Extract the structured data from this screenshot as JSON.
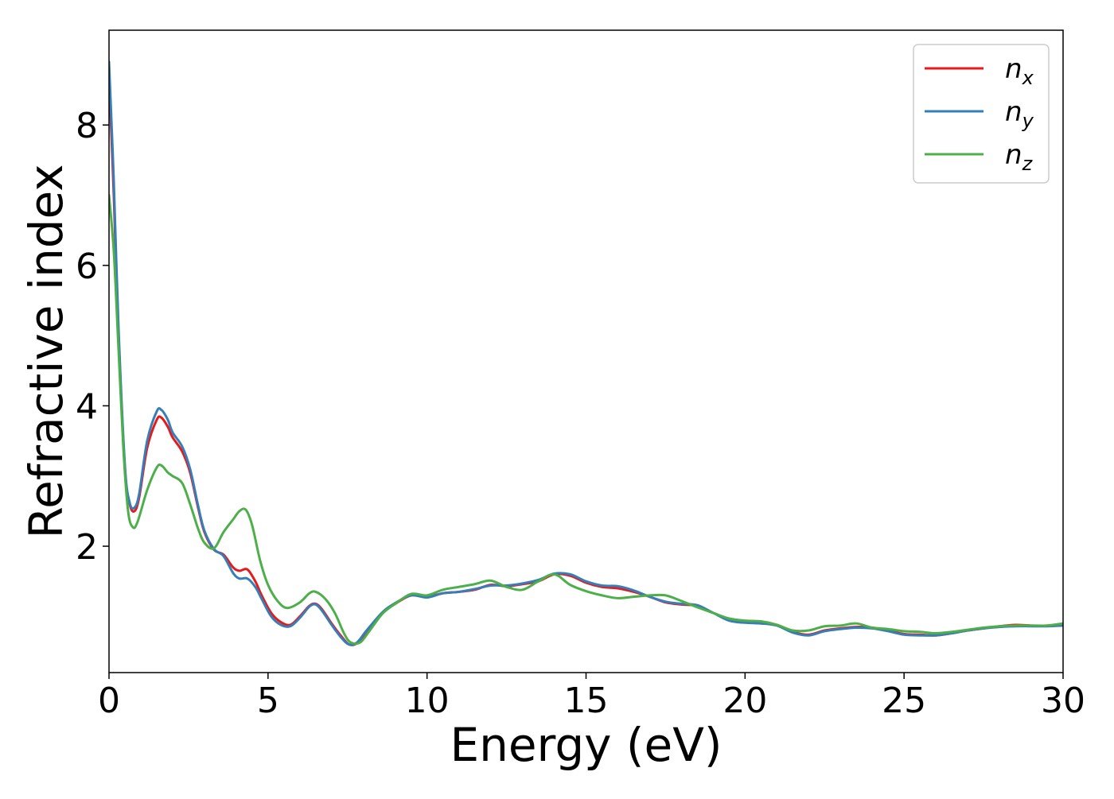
{
  "chart_data": {
    "type": "line",
    "title": "",
    "xlabel": "Energy (eV)",
    "ylabel": "Refractive index",
    "xlim": [
      0,
      30
    ],
    "ylim": [
      0.2,
      9.35
    ],
    "xticks": [
      "0",
      "5",
      "10",
      "15",
      "20",
      "25",
      "30"
    ],
    "yticks": [
      "2",
      "4",
      "6",
      "8"
    ],
    "grid": false,
    "legend_position": "top-right",
    "series": [
      {
        "name": "n_x",
        "legend_base": "n",
        "legend_sub": "x",
        "color": "#e41a1c",
        "points": [
          [
            0,
            8.7
          ],
          [
            0.15,
            7.0
          ],
          [
            0.3,
            5.0
          ],
          [
            0.5,
            3.1
          ],
          [
            0.65,
            2.6
          ],
          [
            0.8,
            2.5
          ],
          [
            0.95,
            2.7
          ],
          [
            1.2,
            3.4
          ],
          [
            1.5,
            3.8
          ],
          [
            1.65,
            3.83
          ],
          [
            1.85,
            3.7
          ],
          [
            2.0,
            3.55
          ],
          [
            2.3,
            3.35
          ],
          [
            2.55,
            3.05
          ],
          [
            2.8,
            2.55
          ],
          [
            3.0,
            2.2
          ],
          [
            3.3,
            1.95
          ],
          [
            3.6,
            1.88
          ],
          [
            3.9,
            1.7
          ],
          [
            4.1,
            1.65
          ],
          [
            4.35,
            1.67
          ],
          [
            4.6,
            1.5
          ],
          [
            4.8,
            1.3
          ],
          [
            5.1,
            1.05
          ],
          [
            5.4,
            0.92
          ],
          [
            5.7,
            0.88
          ],
          [
            6.0,
            1.0
          ],
          [
            6.3,
            1.15
          ],
          [
            6.5,
            1.18
          ],
          [
            6.7,
            1.1
          ],
          [
            7.0,
            0.9
          ],
          [
            7.3,
            0.72
          ],
          [
            7.55,
            0.6
          ],
          [
            7.8,
            0.62
          ],
          [
            8.1,
            0.78
          ],
          [
            8.6,
            1.05
          ],
          [
            9.0,
            1.18
          ],
          [
            9.5,
            1.3
          ],
          [
            10.0,
            1.28
          ],
          [
            10.5,
            1.33
          ],
          [
            11.0,
            1.35
          ],
          [
            11.5,
            1.38
          ],
          [
            12.0,
            1.45
          ],
          [
            12.5,
            1.43
          ],
          [
            13.0,
            1.46
          ],
          [
            13.5,
            1.5
          ],
          [
            14.0,
            1.6
          ],
          [
            14.5,
            1.58
          ],
          [
            15.0,
            1.48
          ],
          [
            15.5,
            1.42
          ],
          [
            16.0,
            1.4
          ],
          [
            16.5,
            1.35
          ],
          [
            17.0,
            1.28
          ],
          [
            17.5,
            1.2
          ],
          [
            18.0,
            1.17
          ],
          [
            18.5,
            1.15
          ],
          [
            19.0,
            1.05
          ],
          [
            19.5,
            0.95
          ],
          [
            20.0,
            0.92
          ],
          [
            20.5,
            0.9
          ],
          [
            21.0,
            0.88
          ],
          [
            21.5,
            0.78
          ],
          [
            22.0,
            0.74
          ],
          [
            22.5,
            0.8
          ],
          [
            23.0,
            0.83
          ],
          [
            23.5,
            0.85
          ],
          [
            24.0,
            0.84
          ],
          [
            24.5,
            0.8
          ],
          [
            25.0,
            0.75
          ],
          [
            25.5,
            0.74
          ],
          [
            26.0,
            0.73
          ],
          [
            26.5,
            0.76
          ],
          [
            27.0,
            0.8
          ],
          [
            27.5,
            0.83
          ],
          [
            28.0,
            0.86
          ],
          [
            28.5,
            0.88
          ],
          [
            29.0,
            0.87
          ],
          [
            29.5,
            0.87
          ],
          [
            30.0,
            0.88
          ]
        ]
      },
      {
        "name": "n_y",
        "legend_base": "n",
        "legend_sub": "y",
        "color": "#377eb8",
        "points": [
          [
            0,
            8.9
          ],
          [
            0.15,
            7.2
          ],
          [
            0.3,
            5.1
          ],
          [
            0.5,
            3.15
          ],
          [
            0.65,
            2.62
          ],
          [
            0.8,
            2.55
          ],
          [
            0.95,
            2.75
          ],
          [
            1.2,
            3.5
          ],
          [
            1.5,
            3.92
          ],
          [
            1.65,
            3.94
          ],
          [
            1.85,
            3.8
          ],
          [
            2.0,
            3.62
          ],
          [
            2.3,
            3.42
          ],
          [
            2.55,
            3.1
          ],
          [
            2.8,
            2.58
          ],
          [
            3.0,
            2.22
          ],
          [
            3.3,
            1.96
          ],
          [
            3.6,
            1.86
          ],
          [
            3.9,
            1.62
          ],
          [
            4.1,
            1.54
          ],
          [
            4.35,
            1.54
          ],
          [
            4.6,
            1.42
          ],
          [
            4.8,
            1.25
          ],
          [
            5.1,
            1.0
          ],
          [
            5.4,
            0.88
          ],
          [
            5.7,
            0.86
          ],
          [
            6.0,
            0.98
          ],
          [
            6.3,
            1.14
          ],
          [
            6.5,
            1.17
          ],
          [
            6.7,
            1.08
          ],
          [
            7.0,
            0.88
          ],
          [
            7.3,
            0.7
          ],
          [
            7.55,
            0.6
          ],
          [
            7.8,
            0.63
          ],
          [
            8.1,
            0.8
          ],
          [
            8.6,
            1.06
          ],
          [
            9.0,
            1.19
          ],
          [
            9.5,
            1.3
          ],
          [
            10.0,
            1.27
          ],
          [
            10.5,
            1.33
          ],
          [
            11.0,
            1.35
          ],
          [
            11.5,
            1.39
          ],
          [
            12.0,
            1.44
          ],
          [
            12.5,
            1.44
          ],
          [
            13.0,
            1.47
          ],
          [
            13.5,
            1.52
          ],
          [
            14.0,
            1.61
          ],
          [
            14.5,
            1.6
          ],
          [
            15.0,
            1.5
          ],
          [
            15.5,
            1.44
          ],
          [
            16.0,
            1.43
          ],
          [
            16.5,
            1.37
          ],
          [
            17.0,
            1.28
          ],
          [
            17.5,
            1.21
          ],
          [
            18.0,
            1.18
          ],
          [
            18.5,
            1.16
          ],
          [
            19.0,
            1.05
          ],
          [
            19.5,
            0.94
          ],
          [
            20.0,
            0.91
          ],
          [
            20.5,
            0.9
          ],
          [
            21.0,
            0.87
          ],
          [
            21.5,
            0.77
          ],
          [
            22.0,
            0.73
          ],
          [
            22.5,
            0.79
          ],
          [
            23.0,
            0.82
          ],
          [
            23.5,
            0.84
          ],
          [
            24.0,
            0.83
          ],
          [
            24.5,
            0.79
          ],
          [
            25.0,
            0.74
          ],
          [
            25.5,
            0.73
          ],
          [
            26.0,
            0.73
          ],
          [
            26.5,
            0.76
          ],
          [
            27.0,
            0.8
          ],
          [
            27.5,
            0.83
          ],
          [
            28.0,
            0.85
          ],
          [
            28.5,
            0.86
          ],
          [
            29.0,
            0.86
          ],
          [
            29.5,
            0.86
          ],
          [
            30.0,
            0.87
          ]
        ]
      },
      {
        "name": "n_z",
        "legend_base": "n",
        "legend_sub": "z",
        "color": "#4daf4a",
        "points": [
          [
            0,
            7.0
          ],
          [
            0.15,
            6.2
          ],
          [
            0.3,
            4.8
          ],
          [
            0.45,
            3.4
          ],
          [
            0.6,
            2.5
          ],
          [
            0.75,
            2.27
          ],
          [
            0.9,
            2.35
          ],
          [
            1.2,
            2.8
          ],
          [
            1.5,
            3.12
          ],
          [
            1.65,
            3.15
          ],
          [
            1.85,
            3.05
          ],
          [
            2.0,
            3.0
          ],
          [
            2.3,
            2.9
          ],
          [
            2.55,
            2.6
          ],
          [
            2.8,
            2.25
          ],
          [
            3.0,
            2.05
          ],
          [
            3.3,
            1.97
          ],
          [
            3.6,
            2.2
          ],
          [
            3.9,
            2.38
          ],
          [
            4.1,
            2.5
          ],
          [
            4.3,
            2.52
          ],
          [
            4.5,
            2.3
          ],
          [
            4.75,
            1.8
          ],
          [
            5.0,
            1.45
          ],
          [
            5.3,
            1.22
          ],
          [
            5.6,
            1.12
          ],
          [
            6.0,
            1.2
          ],
          [
            6.3,
            1.33
          ],
          [
            6.5,
            1.35
          ],
          [
            6.8,
            1.25
          ],
          [
            7.1,
            1.05
          ],
          [
            7.4,
            0.75
          ],
          [
            7.6,
            0.63
          ],
          [
            7.9,
            0.63
          ],
          [
            8.2,
            0.8
          ],
          [
            8.6,
            1.04
          ],
          [
            9.0,
            1.18
          ],
          [
            9.5,
            1.32
          ],
          [
            10.0,
            1.3
          ],
          [
            10.5,
            1.38
          ],
          [
            11.0,
            1.42
          ],
          [
            11.5,
            1.46
          ],
          [
            12.0,
            1.51
          ],
          [
            12.5,
            1.42
          ],
          [
            13.0,
            1.38
          ],
          [
            13.5,
            1.5
          ],
          [
            14.0,
            1.6
          ],
          [
            14.5,
            1.45
          ],
          [
            15.0,
            1.36
          ],
          [
            15.5,
            1.3
          ],
          [
            16.0,
            1.26
          ],
          [
            16.5,
            1.28
          ],
          [
            17.0,
            1.3
          ],
          [
            17.5,
            1.3
          ],
          [
            18.0,
            1.22
          ],
          [
            18.5,
            1.13
          ],
          [
            19.0,
            1.05
          ],
          [
            19.5,
            0.97
          ],
          [
            20.0,
            0.94
          ],
          [
            20.5,
            0.93
          ],
          [
            21.0,
            0.88
          ],
          [
            21.5,
            0.8
          ],
          [
            22.0,
            0.8
          ],
          [
            22.5,
            0.86
          ],
          [
            23.0,
            0.87
          ],
          [
            23.5,
            0.9
          ],
          [
            24.0,
            0.84
          ],
          [
            24.5,
            0.82
          ],
          [
            25.0,
            0.79
          ],
          [
            25.5,
            0.78
          ],
          [
            26.0,
            0.76
          ],
          [
            26.5,
            0.78
          ],
          [
            27.0,
            0.81
          ],
          [
            27.5,
            0.84
          ],
          [
            28.0,
            0.86
          ],
          [
            28.5,
            0.87
          ],
          [
            29.0,
            0.87
          ],
          [
            29.5,
            0.87
          ],
          [
            30.0,
            0.9
          ]
        ]
      }
    ]
  }
}
